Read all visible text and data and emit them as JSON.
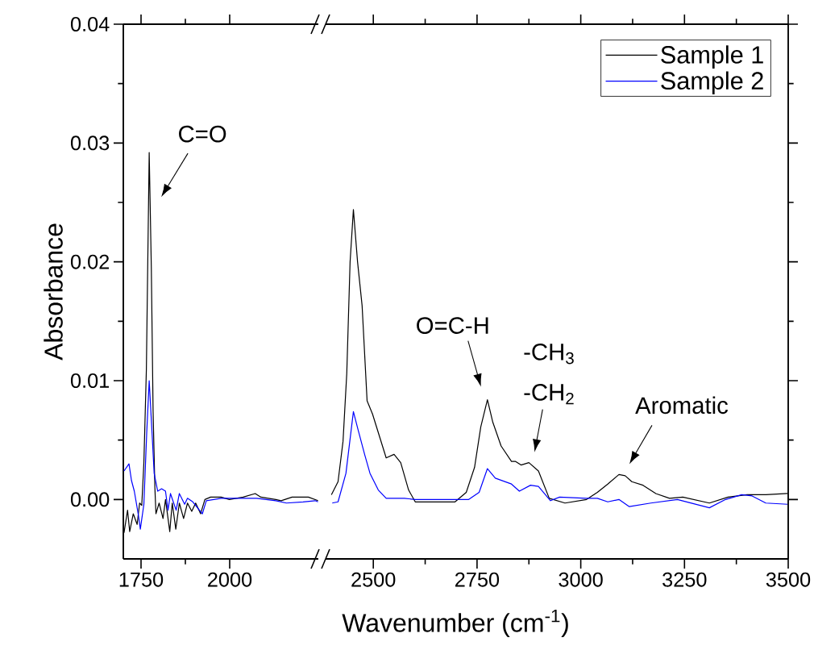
{
  "chart_data": [
    {
      "type": "line",
      "ylabel": "Absorbance",
      "xlim": [
        1700,
        2250
      ],
      "xticks": [
        1750,
        2000
      ],
      "ylim": [
        -0.005,
        0.04
      ],
      "yticks": [
        {
          "value": 0,
          "label": "0.00"
        },
        {
          "value": 0.01,
          "label": "0.01"
        },
        {
          "value": 0.02,
          "label": "0.02"
        },
        {
          "value": 0.03,
          "label": "0.03"
        },
        {
          "value": 0.04,
          "label": "0.04"
        }
      ],
      "marker": "none",
      "legend": false,
      "annotations": [
        {
          "text": "C=O",
          "x": 1773,
          "y": 0.0292
        }
      ],
      "series": [
        {
          "color": "#000000",
          "x": [
            1702,
            1712,
            1718,
            1728,
            1739,
            1746,
            1752,
            1758,
            1765,
            1773,
            1779,
            1784,
            1789,
            1792,
            1801,
            1812,
            1819,
            1831,
            1838,
            1848,
            1858,
            1870,
            1881,
            1893,
            1904,
            1918,
            1930,
            1946,
            1976,
            1999,
            2038,
            2072,
            2088,
            2130,
            2145,
            2176,
            2222,
            2249
          ],
          "values": [
            -0.0028,
            -0.0009,
            -0.0027,
            -0.0012,
            -0.0021,
            -0.0003,
            -0.0005,
            0.0031,
            0.0109,
            0.0292,
            0.0195,
            0.0074,
            0.001,
            -0.0012,
            -0.0003,
            -0.0016,
            0.0,
            -0.0027,
            -0.0003,
            -0.0025,
            -0.0003,
            -0.0016,
            -0.0003,
            -0.001,
            -0.0003,
            -0.0012,
            0.0,
            0.0002,
            0.0002,
            0.0,
            0.0002,
            0.0005,
            0.0002,
            0.0,
            -0.0001,
            0.0002,
            0.0002,
            -0.0001
          ]
        },
        {
          "color": "#0000ff",
          "x": [
            1702,
            1716,
            1723,
            1731,
            1743,
            1748,
            1758,
            1766,
            1773,
            1781,
            1787,
            1797,
            1808,
            1819,
            1826,
            1833,
            1849,
            1858,
            1873,
            1881,
            1896,
            1923,
            1934,
            1976,
            2076,
            2130,
            2160,
            2207,
            2241,
            2249
          ],
          "values": [
            0.0024,
            0.003,
            0.0016,
            0.0007,
            -0.0014,
            -0.0025,
            -0.0004,
            0.0056,
            0.01,
            0.0056,
            0.0022,
            0.0007,
            0.0009,
            0.0007,
            -0.0009,
            0.0005,
            -0.0009,
            0.0005,
            -0.0004,
            0.0001,
            -0.0002,
            -0.0012,
            -0.0001,
            0.0001,
            0.0001,
            -0.0001,
            -0.0003,
            -0.0002,
            -0.0001,
            -0.0002
          ]
        }
      ]
    },
    {
      "type": "line",
      "xlabel": "Wavenumber (cm$^{-1}$)",
      "xlim": [
        2385,
        3500
      ],
      "xticks": [
        2500,
        2750,
        3000,
        3250,
        3500
      ],
      "ylim": [
        -0.005,
        0.04
      ],
      "yticks": [
        0,
        0.01,
        0.02,
        0.03,
        0.04
      ],
      "tick_labels": "x",
      "marker": "none",
      "legend": "top right",
      "annotations": [
        {
          "text": "O=C-H",
          "x": 2775,
          "y": 0.0084
        },
        "-CH$_{3}$",
        {
          "text": "-CH$_{2}$",
          "x": 2875,
          "y": 0.0031
        },
        {
          "text": "Aromatic",
          "x": 3092,
          "y": 0.0021
        }
      ],
      "series": [
        {
          "name": "Sample 1",
          "color": "#000000",
          "x": [
            2399,
            2415,
            2427,
            2436,
            2444,
            2452,
            2462,
            2473,
            2485,
            2498,
            2531,
            2550,
            2566,
            2585,
            2601,
            2697,
            2724,
            2744,
            2759,
            2775,
            2788,
            2808,
            2833,
            2843,
            2856,
            2875,
            2898,
            2924,
            2962,
            3014,
            3040,
            3065,
            3092,
            3107,
            3123,
            3150,
            3181,
            3214,
            3246,
            3310,
            3355,
            3401,
            3446,
            3498
          ],
          "values": [
            0.0004,
            0.0015,
            0.0049,
            0.0106,
            0.02,
            0.0244,
            0.02,
            0.0163,
            0.0083,
            0.0072,
            0.0035,
            0.0038,
            0.0031,
            0.0008,
            -0.0002,
            -0.0002,
            0.0006,
            0.0027,
            0.0061,
            0.0084,
            0.0065,
            0.0045,
            0.0032,
            0.0032,
            0.0029,
            0.0031,
            0.0024,
            0.0001,
            -0.0003,
            0.0,
            0.0006,
            0.0013,
            0.0021,
            0.002,
            0.0015,
            0.0012,
            0.0005,
            0.0001,
            0.0002,
            -0.0003,
            0.0002,
            0.0004,
            0.0004,
            0.0005
          ]
        },
        {
          "name": "Sample 2",
          "color": "#0000ff",
          "x": [
            2401,
            2415,
            2434,
            2452,
            2463,
            2479,
            2492,
            2512,
            2531,
            2575,
            2601,
            2730,
            2755,
            2775,
            2794,
            2833,
            2852,
            2879,
            2898,
            2927,
            2949,
            3014,
            3040,
            3065,
            3092,
            3117,
            3169,
            3233,
            3310,
            3349,
            3388,
            3413,
            3446,
            3498
          ],
          "values": [
            -0.0003,
            -0.0002,
            0.0022,
            0.0074,
            0.0059,
            0.0038,
            0.0022,
            0.0008,
            0.0001,
            0.0001,
            0.0,
            0.0,
            0.0006,
            0.0026,
            0.0018,
            0.0013,
            0.0007,
            0.0012,
            0.0011,
            -0.0001,
            0.0002,
            0.0001,
            0.0001,
            -0.0002,
            0.0,
            -0.0006,
            -0.0003,
            0.0,
            -0.0007,
            0.0,
            0.0004,
            0.0003,
            -0.0003,
            -0.0004
          ]
        }
      ]
    }
  ]
}
